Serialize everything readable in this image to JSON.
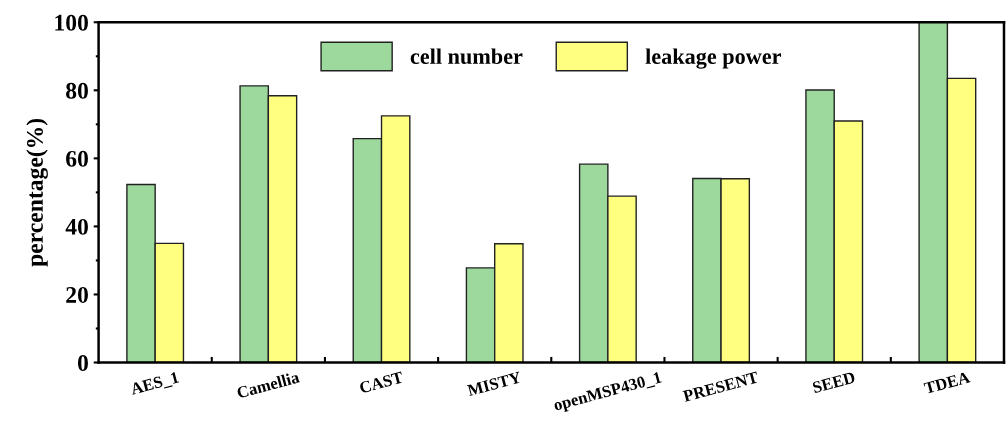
{
  "chart_data": {
    "type": "bar",
    "ylabel": "percentage(%)",
    "categories": [
      "AES_1",
      "Camellia",
      "CAST",
      "MISTY",
      "openMSP430_1",
      "PRESENT",
      "SEED",
      "TDEA"
    ],
    "series": [
      {
        "name": "cell number",
        "color": "#9dd89c",
        "values": [
          52.3,
          81.3,
          65.8,
          27.8,
          58.3,
          54.1,
          80.1,
          100
        ]
      },
      {
        "name": "leakage power",
        "color": "#ffff80",
        "values": [
          35.0,
          78.4,
          72.5,
          34.9,
          48.9,
          54.0,
          71.0,
          83.5
        ]
      }
    ],
    "ylim": [
      0,
      100
    ],
    "yticks": [
      0,
      20,
      40,
      60,
      80,
      100
    ],
    "grid": false,
    "legend": "top"
  }
}
